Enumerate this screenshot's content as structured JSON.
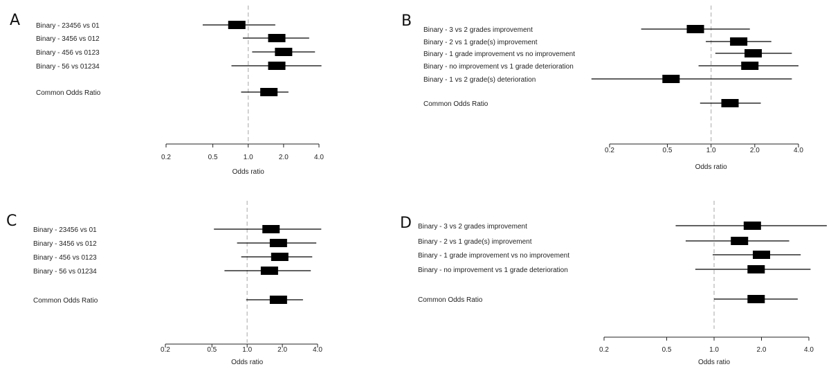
{
  "chart_data": [
    {
      "type": "forest",
      "panel": "A",
      "scale": "log",
      "reference_line": 1.0,
      "xticks": [
        0.2,
        0.5,
        1.0,
        2.0,
        4.0
      ],
      "xtick_labels": [
        "0.2",
        "0.5",
        "1.0",
        "2.0",
        "4.0"
      ],
      "xlabel": "Odds ratio",
      "rows": [
        {
          "label": "Binary - 23456 vs 01",
          "or": 0.8,
          "lo": 0.41,
          "hi": 1.7
        },
        {
          "label": "Binary - 3456 vs 012",
          "or": 1.75,
          "lo": 0.9,
          "hi": 3.3
        },
        {
          "label": "Binary - 456 vs 0123",
          "or": 2.0,
          "lo": 1.08,
          "hi": 3.7
        },
        {
          "label": "Binary - 56 vs 01234",
          "or": 1.75,
          "lo": 0.72,
          "hi": 4.2
        },
        {
          "label": "Common Odds Ratio",
          "or": 1.5,
          "lo": 0.87,
          "hi": 2.2
        }
      ]
    },
    {
      "type": "forest",
      "panel": "B",
      "scale": "log",
      "reference_line": 1.0,
      "xticks": [
        0.2,
        0.5,
        1.0,
        2.0,
        4.0
      ],
      "xtick_labels": [
        "0.2",
        "0.5",
        "1.0",
        "2.0",
        "4.0"
      ],
      "xlabel": "Odds ratio",
      "rows": [
        {
          "label": "Binary - 3  vs 2 grades improvement",
          "or": 0.78,
          "lo": 0.33,
          "hi": 1.85
        },
        {
          "label": "Binary - 2 vs 1 grade(s) improvement",
          "or": 1.55,
          "lo": 0.92,
          "hi": 2.6
        },
        {
          "label": "Binary - 1 grade improvement vs no improvement",
          "or": 1.95,
          "lo": 1.07,
          "hi": 3.6
        },
        {
          "label": "Binary - no improvement vs 1 grade deterioration",
          "or": 1.85,
          "lo": 0.82,
          "hi": 4.0
        },
        {
          "label": "Binary - 1 vs 2 grade(s) deterioration",
          "or": 0.53,
          "lo": 0.15,
          "hi": 3.6
        },
        {
          "label": "Common Odds Ratio",
          "or": 1.35,
          "lo": 0.84,
          "hi": 2.2
        }
      ]
    },
    {
      "type": "forest",
      "panel": "C",
      "scale": "log",
      "reference_line": 1.0,
      "xticks": [
        0.2,
        0.5,
        1.0,
        2.0,
        4.0
      ],
      "xtick_labels": [
        "0.2",
        "0.5",
        "1.0",
        "2.0",
        "4.0"
      ],
      "xlabel": "Odds ratio",
      "rows": [
        {
          "label": "Binary - 23456 vs 01",
          "or": 1.6,
          "lo": 0.52,
          "hi": 4.3
        },
        {
          "label": "Binary - 3456 vs 012",
          "or": 1.85,
          "lo": 0.82,
          "hi": 3.9
        },
        {
          "label": "Binary - 456 vs 0123",
          "or": 1.9,
          "lo": 0.89,
          "hi": 3.6
        },
        {
          "label": "Binary - 56 vs 01234",
          "or": 1.55,
          "lo": 0.64,
          "hi": 3.5
        },
        {
          "label": "Common Odds Ratio",
          "or": 1.85,
          "lo": 0.98,
          "hi": 3.0
        }
      ]
    },
    {
      "type": "forest",
      "panel": "D",
      "scale": "log",
      "reference_line": 1.0,
      "xticks": [
        0.2,
        0.5,
        1.0,
        2.0,
        4.0
      ],
      "xtick_labels": [
        "0.2",
        "0.5",
        "1.0",
        "2.0",
        "4.0"
      ],
      "xlabel": "Odds ratio",
      "rows": [
        {
          "label": "Binary - 3  vs 2 grades improvement",
          "or": 1.75,
          "lo": 0.57,
          "hi": 5.2
        },
        {
          "label": "Binary - 2 vs 1 grade(s) improvement",
          "or": 1.45,
          "lo": 0.66,
          "hi": 3.0
        },
        {
          "label": "Binary - 1 grade improvement vs no improvement",
          "or": 2.0,
          "lo": 0.98,
          "hi": 3.55
        },
        {
          "label": "Binary - no improvement vs 1 grade deterioration",
          "or": 1.85,
          "lo": 0.76,
          "hi": 4.1
        },
        {
          "label": "Common Odds Ratio",
          "or": 1.85,
          "lo": 1.0,
          "hi": 3.4
        }
      ]
    }
  ]
}
